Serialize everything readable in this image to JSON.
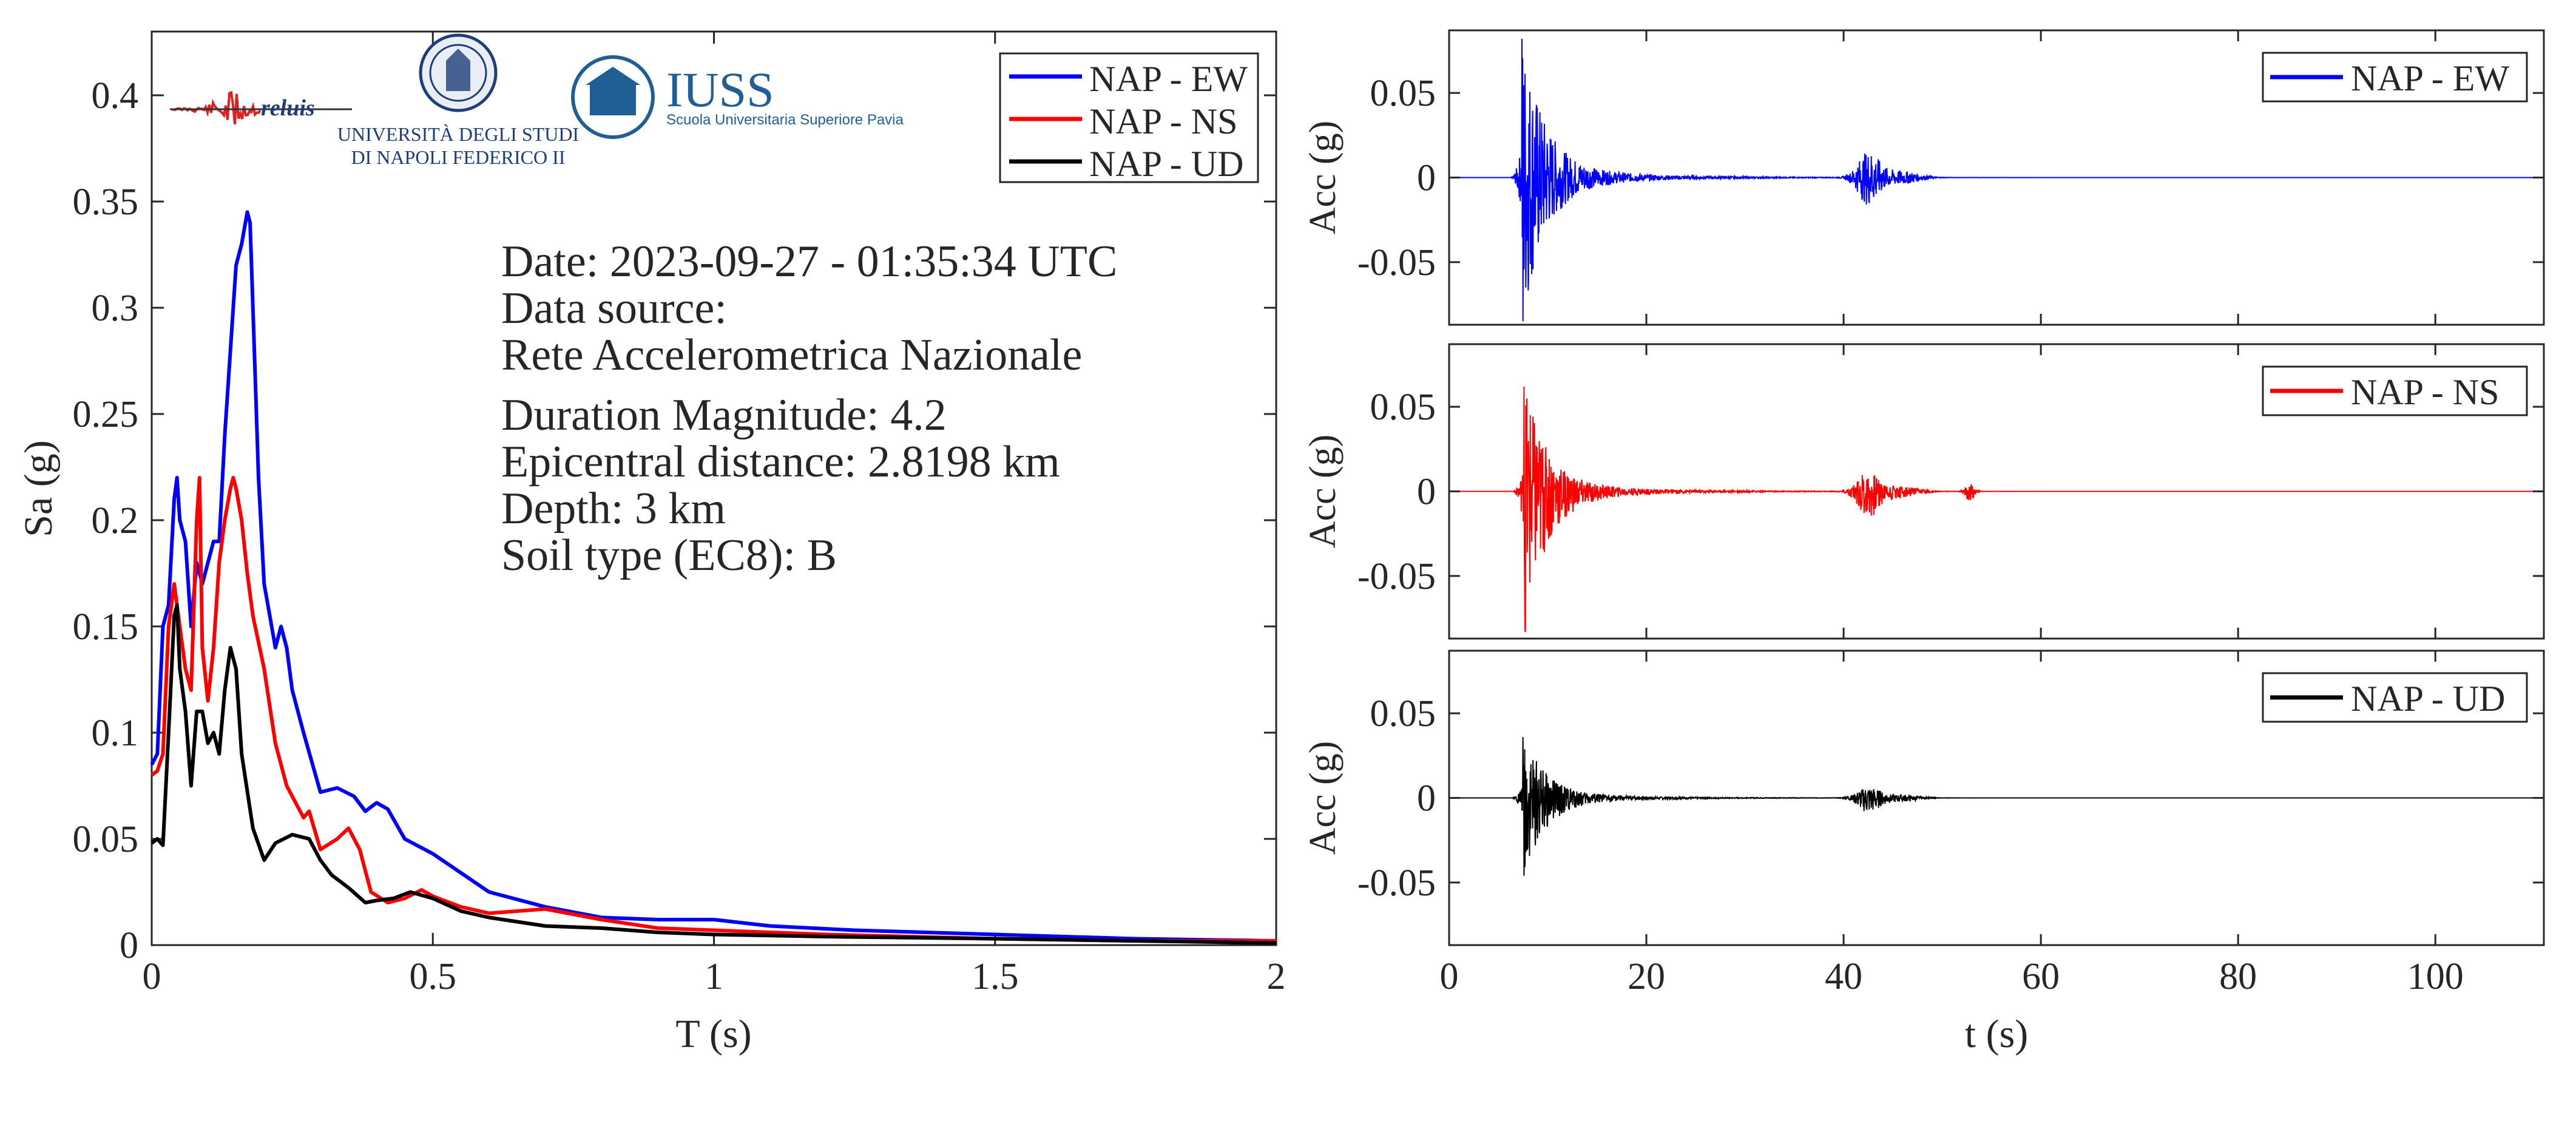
{
  "logos": {
    "reluis": "reluis",
    "unina_line1": "UNIVERSITÀ DEGLI STUDI",
    "unina_line2": "DI NAPOLI FEDERICO II",
    "iuss": "IUSS",
    "iuss_sub": "Scuola Universitaria Superiore Pavia"
  },
  "annotation": {
    "date": "Date: 2023-09-27 - 01:35:34 UTC",
    "source_label": "Data source:",
    "source": "Rete Accelerometrica Nazionale",
    "magnitude": "Duration Magnitude: 4.2",
    "distance": "Epicentral distance: 2.8198 km",
    "depth": "Depth: 3 km",
    "soil": "Soil type (EC8): B"
  },
  "colors": {
    "EW": "#0000ff",
    "NS": "#ff0000",
    "UD": "#000000",
    "axis": "#262626"
  },
  "chart_data": [
    {
      "type": "line",
      "xlabel": "T (s)",
      "ylabel": "Sa (g)",
      "xlim": [
        0,
        2
      ],
      "ylim": [
        0,
        0.43
      ],
      "xticks": [
        0,
        0.5,
        1,
        1.5,
        2
      ],
      "xtick_labels": [
        "0",
        "0.5",
        "1",
        "1.5",
        "2"
      ],
      "yticks": [
        0,
        0.05,
        0.1,
        0.15,
        0.2,
        0.25,
        0.3,
        0.35,
        0.4
      ],
      "ytick_labels": [
        "0",
        "0.05",
        "0.1",
        "0.15",
        "0.2",
        "0.25",
        "0.3",
        "0.35",
        "0.4"
      ],
      "legend": "top-right",
      "grid": false,
      "series": [
        {
          "name": "NAP - EW",
          "color": "#0000ff",
          "x": [
            0,
            0.01,
            0.02,
            0.03,
            0.04,
            0.045,
            0.05,
            0.06,
            0.07,
            0.08,
            0.09,
            0.1,
            0.11,
            0.12,
            0.13,
            0.14,
            0.15,
            0.16,
            0.17,
            0.175,
            0.18,
            0.19,
            0.2,
            0.21,
            0.22,
            0.23,
            0.24,
            0.25,
            0.27,
            0.3,
            0.33,
            0.36,
            0.38,
            0.4,
            0.42,
            0.45,
            0.5,
            0.55,
            0.6,
            0.7,
            0.8,
            0.9,
            1.0,
            1.1,
            1.25,
            1.5,
            1.75,
            2.0
          ],
          "y": [
            0.085,
            0.09,
            0.15,
            0.16,
            0.21,
            0.22,
            0.2,
            0.19,
            0.15,
            0.18,
            0.17,
            0.18,
            0.19,
            0.19,
            0.24,
            0.28,
            0.32,
            0.33,
            0.345,
            0.34,
            0.3,
            0.22,
            0.17,
            0.155,
            0.14,
            0.15,
            0.14,
            0.12,
            0.1,
            0.072,
            0.074,
            0.07,
            0.063,
            0.067,
            0.064,
            0.05,
            0.043,
            0.034,
            0.025,
            0.018,
            0.013,
            0.012,
            0.012,
            0.009,
            0.007,
            0.005,
            0.003,
            0.002
          ]
        },
        {
          "name": "NAP - NS",
          "color": "#ff0000",
          "x": [
            0,
            0.01,
            0.02,
            0.03,
            0.04,
            0.05,
            0.06,
            0.07,
            0.08,
            0.085,
            0.09,
            0.1,
            0.11,
            0.12,
            0.13,
            0.14,
            0.145,
            0.15,
            0.16,
            0.17,
            0.18,
            0.2,
            0.22,
            0.24,
            0.26,
            0.27,
            0.28,
            0.3,
            0.33,
            0.35,
            0.37,
            0.39,
            0.42,
            0.45,
            0.48,
            0.5,
            0.55,
            0.6,
            0.65,
            0.7,
            0.8,
            0.9,
            1.0,
            1.2,
            1.5,
            1.75,
            2.0
          ],
          "y": [
            0.08,
            0.082,
            0.09,
            0.15,
            0.17,
            0.15,
            0.13,
            0.12,
            0.2,
            0.22,
            0.14,
            0.115,
            0.14,
            0.18,
            0.2,
            0.215,
            0.22,
            0.215,
            0.2,
            0.175,
            0.155,
            0.13,
            0.095,
            0.075,
            0.065,
            0.06,
            0.063,
            0.045,
            0.05,
            0.055,
            0.045,
            0.025,
            0.02,
            0.022,
            0.026,
            0.023,
            0.018,
            0.015,
            0.016,
            0.017,
            0.012,
            0.008,
            0.007,
            0.005,
            0.003,
            0.002,
            0.002
          ]
        },
        {
          "name": "NAP - UD",
          "color": "#000000",
          "x": [
            0,
            0.01,
            0.02,
            0.03,
            0.04,
            0.045,
            0.05,
            0.06,
            0.07,
            0.08,
            0.09,
            0.1,
            0.11,
            0.12,
            0.13,
            0.14,
            0.145,
            0.15,
            0.16,
            0.18,
            0.2,
            0.22,
            0.25,
            0.28,
            0.3,
            0.32,
            0.35,
            0.38,
            0.4,
            0.43,
            0.46,
            0.5,
            0.55,
            0.6,
            0.7,
            0.8,
            0.9,
            1.0,
            1.2,
            1.5,
            1.75,
            2.0
          ],
          "y": [
            0.048,
            0.05,
            0.047,
            0.1,
            0.155,
            0.16,
            0.13,
            0.11,
            0.075,
            0.11,
            0.11,
            0.095,
            0.1,
            0.09,
            0.12,
            0.14,
            0.135,
            0.13,
            0.09,
            0.055,
            0.04,
            0.048,
            0.052,
            0.05,
            0.04,
            0.033,
            0.027,
            0.02,
            0.021,
            0.022,
            0.025,
            0.022,
            0.016,
            0.013,
            0.009,
            0.008,
            0.006,
            0.005,
            0.004,
            0.003,
            0.002,
            0.001
          ]
        }
      ]
    },
    {
      "type": "line",
      "xlabel": "",
      "ylabel": "Acc (g)",
      "xlim": [
        0,
        111
      ],
      "ylim": [
        -0.087,
        0.087
      ],
      "yticks": [
        -0.05,
        0,
        0.05
      ],
      "ytick_labels": [
        "-0.05",
        "0",
        "0.05"
      ],
      "legend": "top-right",
      "series": [
        {
          "name": "NAP - EW",
          "color": "#0000ff",
          "peak_pos": 0.082,
          "peak_neg": -0.085,
          "peak_time": 7.4,
          "event2_time": 42.5
        }
      ]
    },
    {
      "type": "line",
      "xlabel": "",
      "ylabel": "Acc (g)",
      "xlim": [
        0,
        111
      ],
      "ylim": [
        -0.087,
        0.087
      ],
      "yticks": [
        -0.05,
        0,
        0.05
      ],
      "ytick_labels": [
        "-0.05",
        "0",
        "0.05"
      ],
      "legend": "top-right",
      "series": [
        {
          "name": "NAP - NS",
          "color": "#ff0000",
          "peak_pos": 0.062,
          "peak_neg": -0.082,
          "peak_time": 7.6,
          "event2_time": 42.5
        }
      ]
    },
    {
      "type": "line",
      "xlabel": "t (s)",
      "ylabel": "Acc (g)",
      "xlim": [
        0,
        111
      ],
      "ylim": [
        -0.087,
        0.087
      ],
      "xticks": [
        0,
        20,
        40,
        60,
        80,
        100
      ],
      "xtick_labels": [
        "0",
        "20",
        "40",
        "60",
        "80",
        "100"
      ],
      "yticks": [
        -0.05,
        0,
        0.05
      ],
      "ytick_labels": [
        "-0.05",
        "0",
        "0.05"
      ],
      "legend": "top-right",
      "series": [
        {
          "name": "NAP - UD",
          "color": "#000000",
          "peak_pos": 0.036,
          "peak_neg": -0.046,
          "peak_time": 7.5,
          "event2_time": 42.5
        }
      ]
    }
  ]
}
